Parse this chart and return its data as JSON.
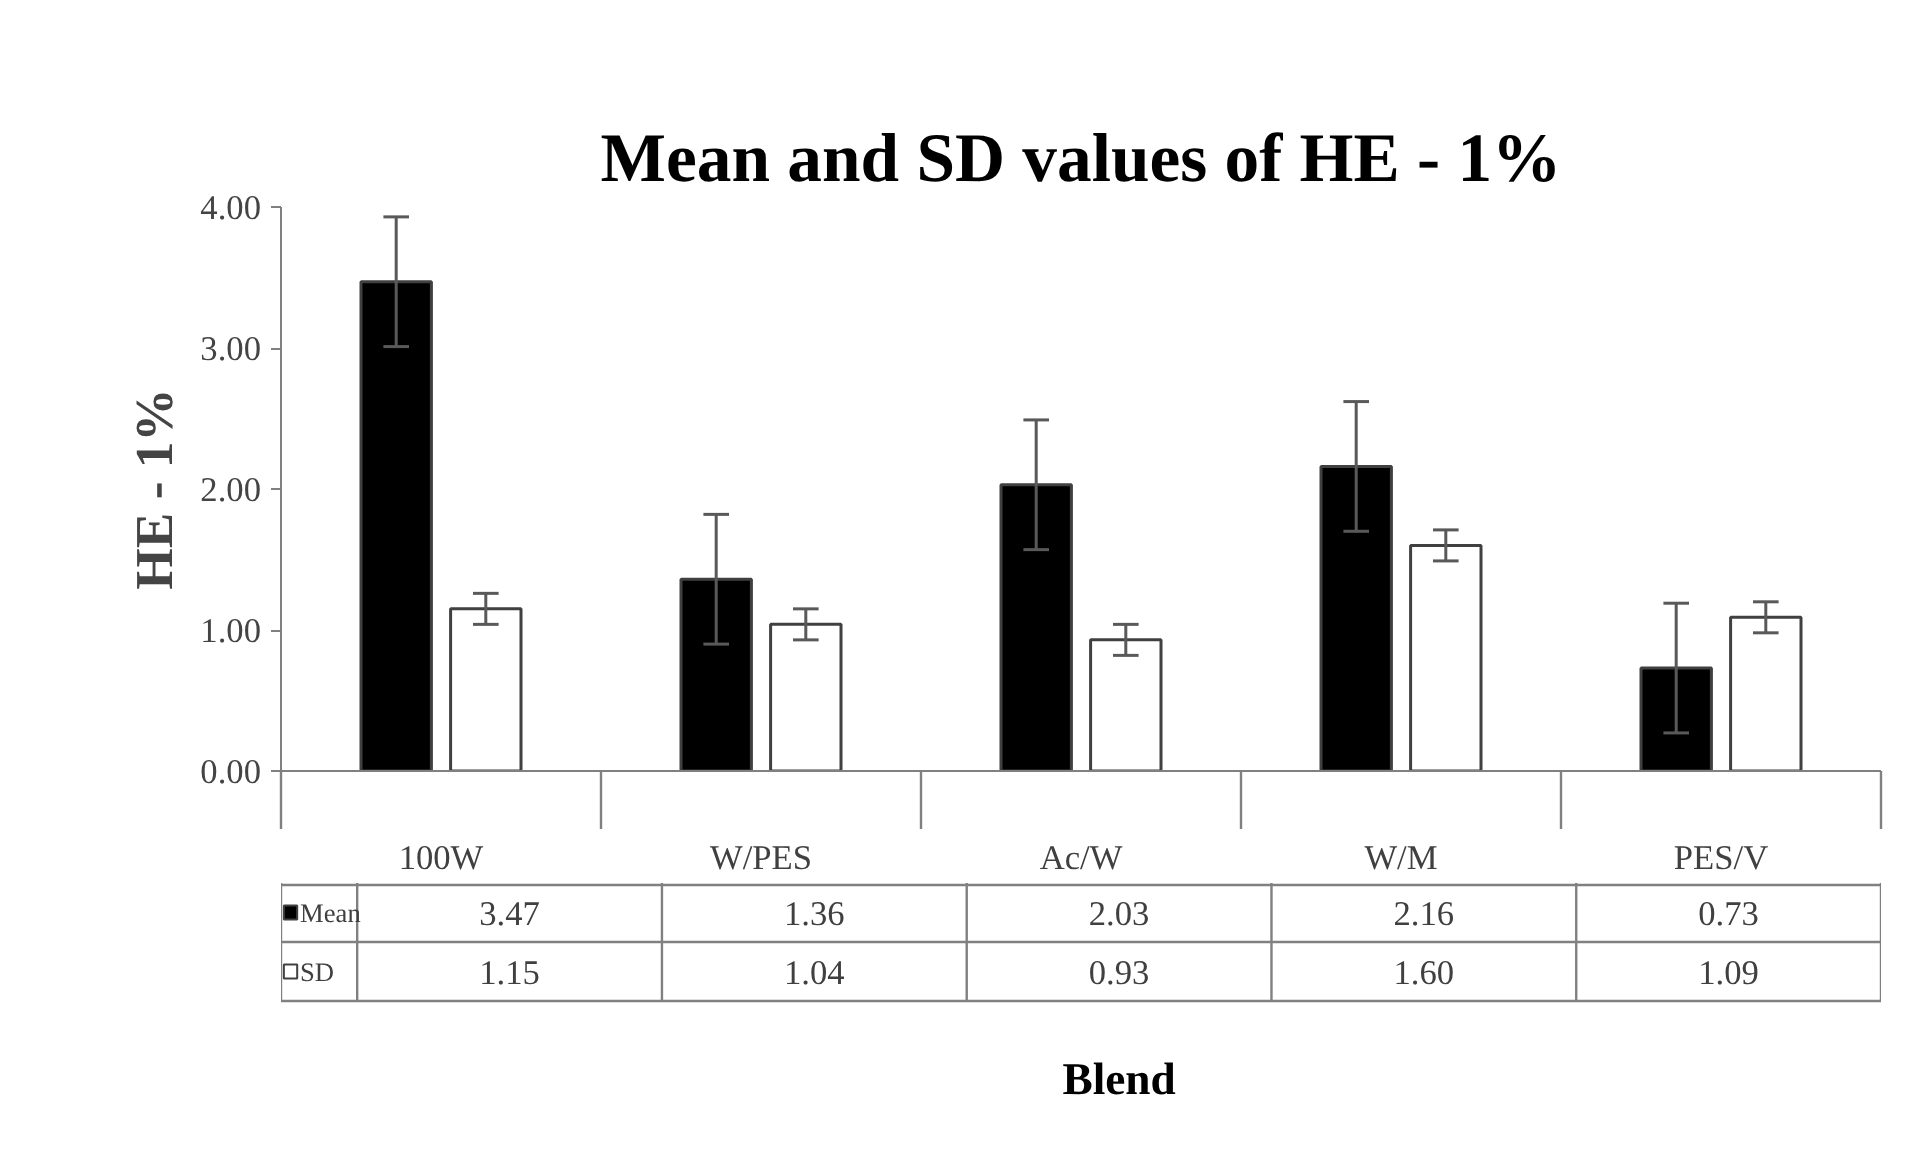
{
  "chart_data": {
    "type": "bar",
    "title": "Mean and SD values of HE - 1%",
    "xlabel": "Blend",
    "ylabel": "HE - 1%",
    "categories": [
      "100W",
      "W/PES",
      "Ac/W",
      "W/M",
      "PES/V"
    ],
    "series": [
      {
        "name": "Mean",
        "color": "#000000",
        "values": [
          3.47,
          1.36,
          2.03,
          2.16,
          0.73
        ],
        "errors": [
          0.46,
          0.46,
          0.46,
          0.46,
          0.46
        ],
        "value_labels": [
          "3.47",
          "1.36",
          "2.03",
          "2.16",
          "0.73"
        ]
      },
      {
        "name": "SD",
        "color": "#ffffff",
        "values": [
          1.15,
          1.04,
          0.93,
          1.6,
          1.09
        ],
        "errors": [
          0.11,
          0.11,
          0.11,
          0.11,
          0.11
        ],
        "value_labels": [
          "1.15",
          "1.04",
          "0.93",
          "1.60",
          "1.09"
        ]
      }
    ],
    "ylim": [
      0,
      4
    ],
    "yticks": [
      {
        "value": 0,
        "label": "0.00"
      },
      {
        "value": 1,
        "label": "1.00"
      },
      {
        "value": 2,
        "label": "2.00"
      },
      {
        "value": 3,
        "label": "3.00"
      },
      {
        "value": 4,
        "label": "4.00"
      }
    ],
    "legend": "bottom left",
    "grid": false
  }
}
